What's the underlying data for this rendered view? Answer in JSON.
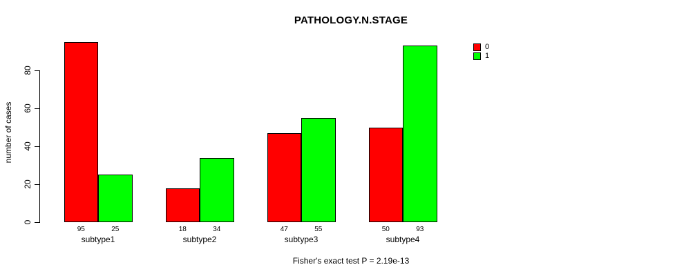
{
  "chart_data": {
    "type": "bar",
    "title": "PATHOLOGY.N.STAGE",
    "categories": [
      "subtype1",
      "subtype2",
      "subtype3",
      "subtype4"
    ],
    "series": [
      {
        "name": "0",
        "color": "#ff0000",
        "values": [
          95,
          18,
          47,
          50
        ]
      },
      {
        "name": "1",
        "color": "#00ff00",
        "values": [
          25,
          34,
          55,
          93
        ]
      }
    ],
    "xlabel": "",
    "ylabel": "number of cases",
    "yticks": [
      0,
      20,
      40,
      60,
      80
    ],
    "ylim": [
      0,
      95
    ],
    "grid": false,
    "legend_position": "top-right",
    "bar_value_labels_shown": true,
    "footnote": "Fisher's exact test P = 2.19e-13"
  }
}
